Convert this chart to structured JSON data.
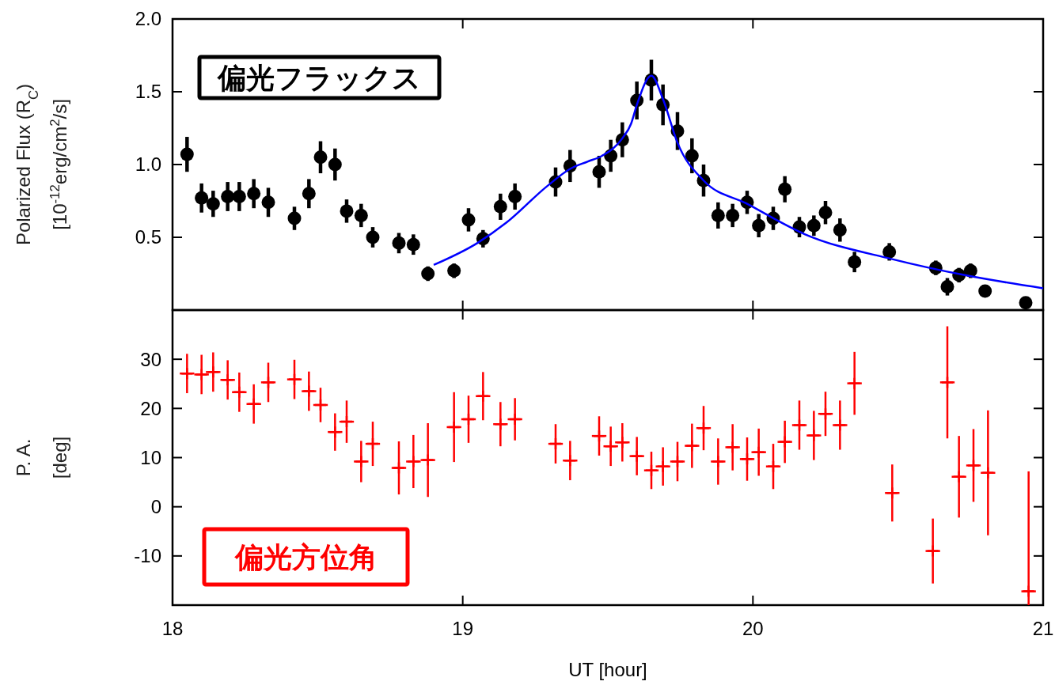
{
  "chart_data": [
    {
      "type": "scatter",
      "ylabel": "Polarized Flux (R$_{C}$)\n[10$^{-12}$erg/cm$^{2}$/s]",
      "annotations": [
        "偏光フラックス"
      ],
      "xlim": [
        18,
        21
      ],
      "xticks": [
        18,
        19,
        20,
        21
      ],
      "ylim": [
        0,
        2
      ],
      "yticks": [
        0.5,
        {
          "value": 1,
          "label": "1.0"
        },
        1.5,
        {
          "value": 2,
          "label": "2.0"
        }
      ],
      "tick_labels": "y",
      "series": [
        {
          "color": "#000000",
          "marker": "circle",
          "x": [
            18.05,
            18.1,
            18.14,
            18.19,
            18.23,
            18.28,
            18.33,
            18.42,
            18.47,
            18.51,
            18.56,
            18.6,
            18.65,
            18.69,
            18.78,
            18.83,
            18.88,
            18.97,
            19.02,
            19.07,
            19.13,
            19.18,
            19.32,
            19.37,
            19.47,
            19.51,
            19.55,
            19.6,
            19.65,
            19.69,
            19.74,
            19.79,
            19.83,
            19.88,
            19.93,
            19.98,
            20.02,
            20.07,
            20.11,
            20.16,
            20.21,
            20.25,
            20.3,
            20.35,
            20.47,
            20.63,
            20.67,
            20.71,
            20.75,
            20.8,
            20.94
          ],
          "values": [
            1.07,
            0.77,
            0.73,
            0.78,
            0.78,
            0.8,
            0.74,
            0.63,
            0.8,
            1.05,
            1.0,
            0.68,
            0.65,
            0.5,
            0.46,
            0.45,
            0.25,
            0.27,
            0.62,
            0.49,
            0.71,
            0.78,
            0.88,
            0.99,
            0.95,
            1.06,
            1.17,
            1.44,
            1.58,
            1.41,
            1.23,
            1.06,
            0.89,
            0.65,
            0.65,
            0.74,
            0.58,
            0.63,
            0.83,
            0.57,
            0.58,
            0.67,
            0.55,
            0.33,
            0.4,
            0.29,
            0.16,
            0.24,
            0.27,
            0.13,
            0.05
          ],
          "errors": [
            0.12,
            0.1,
            0.09,
            0.1,
            0.1,
            0.1,
            0.1,
            0.08,
            0.1,
            0.11,
            0.11,
            0.08,
            0.08,
            0.07,
            0.07,
            0.07,
            0.05,
            0.05,
            0.08,
            0.06,
            0.09,
            0.09,
            0.1,
            0.11,
            0.11,
            0.11,
            0.12,
            0.13,
            0.14,
            0.14,
            0.13,
            0.12,
            0.11,
            0.09,
            0.08,
            0.08,
            0.08,
            0.08,
            0.09,
            0.07,
            0.07,
            0.08,
            0.08,
            0.07,
            0.06,
            0.05,
            0.06,
            0.05,
            0.05,
            0.04,
            0.03
          ]
        },
        {
          "type": "line",
          "color": "#0000ff",
          "x": [
            18.9,
            19.05,
            19.15,
            19.29,
            19.37,
            19.43,
            19.48,
            19.55,
            19.58,
            19.6,
            19.65,
            19.69,
            19.74,
            19.83,
            19.98,
            20.18,
            20.48,
            20.73,
            21.0
          ],
          "values": [
            0.31,
            0.46,
            0.6,
            0.85,
            0.97,
            1.02,
            1.06,
            1.18,
            1.28,
            1.41,
            1.61,
            1.45,
            1.15,
            0.89,
            0.73,
            0.52,
            0.35,
            0.24,
            0.15
          ]
        }
      ]
    },
    {
      "type": "scatter",
      "xlabel": "UT [hour]",
      "ylabel": "P. A.\n[deg]",
      "annotations": [
        "偏光方位角"
      ],
      "xlim": [
        18,
        21
      ],
      "xticks": [
        18,
        19,
        20,
        21
      ],
      "ylim": [
        -20,
        40
      ],
      "yticks": [
        -10,
        0,
        10,
        20,
        30
      ],
      "series": [
        {
          "color": "#ff0000",
          "marker": "cross",
          "x": [
            18.05,
            18.1,
            18.14,
            18.19,
            18.23,
            18.28,
            18.33,
            18.42,
            18.47,
            18.51,
            18.56,
            18.6,
            18.65,
            18.69,
            18.78,
            18.83,
            18.88,
            18.97,
            19.02,
            19.07,
            19.13,
            19.18,
            19.32,
            19.37,
            19.47,
            19.51,
            19.55,
            19.6,
            19.65,
            19.69,
            19.74,
            19.79,
            19.83,
            19.88,
            19.93,
            19.98,
            20.02,
            20.07,
            20.11,
            20.16,
            20.21,
            20.25,
            20.3,
            20.35,
            20.48,
            20.62,
            20.67,
            20.71,
            20.76,
            20.81,
            20.95
          ],
          "values": [
            27.1,
            26.9,
            27.4,
            25.8,
            23.3,
            20.9,
            25.3,
            25.9,
            23.5,
            20.7,
            15.2,
            17.3,
            9.2,
            12.8,
            7.9,
            9.2,
            9.5,
            16.2,
            17.8,
            22.5,
            16.8,
            17.8,
            12.8,
            9.4,
            14.4,
            12.3,
            13.1,
            10.3,
            7.4,
            8.2,
            9.2,
            12.4,
            16.0,
            9.2,
            12.1,
            9.7,
            11.1,
            8.2,
            13.2,
            16.6,
            14.5,
            18.9,
            16.6,
            25.1,
            2.8,
            -9.0,
            25.3,
            6.1,
            8.4,
            6.9,
            -17.2
          ],
          "errors": [
            4.0,
            4.0,
            4.0,
            4.0,
            4.0,
            4.0,
            4.0,
            4.0,
            4.0,
            3.5,
            3.8,
            4.3,
            4.2,
            4.5,
            5.4,
            5.4,
            7.5,
            7.1,
            4.8,
            4.9,
            4.5,
            4.3,
            4.0,
            4.0,
            4.0,
            4.0,
            3.9,
            3.9,
            3.8,
            3.9,
            4.0,
            4.5,
            4.5,
            4.7,
            4.7,
            4.4,
            4.8,
            4.6,
            4.3,
            5.0,
            5.0,
            4.5,
            5.0,
            6.4,
            5.8,
            6.6,
            11.4,
            8.3,
            7.4,
            12.7,
            [
              -20,
              7.2
            ]
          ],
          "xerrors": [
            0.025,
            0.025,
            0.025,
            0.025,
            0.025,
            0.025,
            0.025,
            0.025,
            0.025,
            0.025,
            0.025,
            0.025,
            0.025,
            0.025,
            0.025,
            0.025,
            0.025,
            0.025,
            0.025,
            0.025,
            0.025,
            0.025,
            0.025,
            0.025,
            0.025,
            0.025,
            0.025,
            0.025,
            0.025,
            0.025,
            0.025,
            0.025,
            0.025,
            0.025,
            0.025,
            0.025,
            0.025,
            0.025,
            0.025,
            0.025,
            0.025,
            0.025,
            0.025,
            0.025,
            0.025,
            0.025,
            0.025,
            0.025,
            0.025,
            0.025,
            0.025
          ]
        }
      ]
    }
  ]
}
